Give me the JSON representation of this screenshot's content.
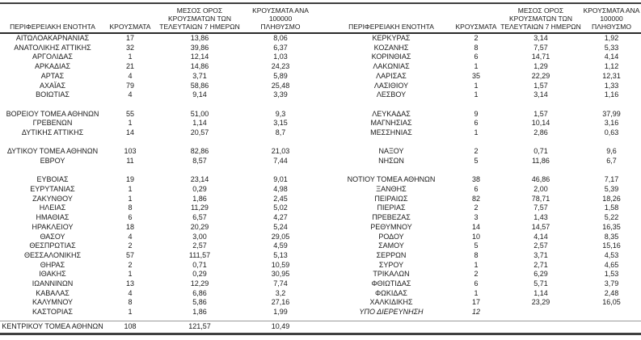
{
  "headers": {
    "region": "ΠΕΡΙΦΕΡΕΙΑΚΗ ΕΝΟΤΗΤΑ",
    "cases": "ΚΡΟΥΣΜΑΤΑ",
    "avg7": "ΜΕΣΟΣ ΟΡΟΣ\nΚΡΟΥΣΜΑΤΩΝ ΤΩΝ\nΤΕΛΕΥΤΑΙΩΝ 7 ΗΜΕΡΩΝ",
    "per100k": "ΚΡΟΥΣΜΑΤΑ ΑΝΑ 100000\nΠΛΗΘΥΣΜΟ"
  },
  "rows": [
    {
      "left": {
        "region": "ΑΙΤΩΛΟΑΚΑΡΝΑΝΙΑΣ",
        "cases": "17",
        "avg7": "13,86",
        "per100k": "8,06"
      },
      "right": {
        "region": "ΚΕΡΚΥΡΑΣ",
        "cases": "2",
        "avg7": "3,14",
        "per100k": "1,92"
      }
    },
    {
      "left": {
        "region": "ΑΝΑΤΟΛΙΚΗΣ ΑΤΤΙΚΗΣ",
        "cases": "32",
        "avg7": "39,86",
        "per100k": "6,37"
      },
      "right": {
        "region": "ΚΟΖΑΝΗΣ",
        "cases": "8",
        "avg7": "7,57",
        "per100k": "5,33"
      }
    },
    {
      "left": {
        "region": "ΑΡΓΟΛΙΔΑΣ",
        "cases": "1",
        "avg7": "12,14",
        "per100k": "1,03"
      },
      "right": {
        "region": "ΚΟΡΙΝΘΙΑΣ",
        "cases": "6",
        "avg7": "14,71",
        "per100k": "4,14"
      }
    },
    {
      "left": {
        "region": "ΑΡΚΑΔΙΑΣ",
        "cases": "21",
        "avg7": "14,86",
        "per100k": "24,23"
      },
      "right": {
        "region": "ΛΑΚΩΝΙΑΣ",
        "cases": "1",
        "avg7": "1,29",
        "per100k": "1,12"
      }
    },
    {
      "left": {
        "region": "ΑΡΤΑΣ",
        "cases": "4",
        "avg7": "3,71",
        "per100k": "5,89"
      },
      "right": {
        "region": "ΛΑΡΙΣΑΣ",
        "cases": "35",
        "avg7": "22,29",
        "per100k": "12,31"
      }
    },
    {
      "left": {
        "region": "ΑΧΑΪΑΣ",
        "cases": "79",
        "avg7": "58,86",
        "per100k": "25,48"
      },
      "right": {
        "region": "ΛΑΣΙΘΙΟΥ",
        "cases": "1",
        "avg7": "1,57",
        "per100k": "1,33"
      }
    },
    {
      "left": {
        "region": "ΒΟΙΩΤΙΑΣ",
        "cases": "4",
        "avg7": "9,14",
        "per100k": "3,39"
      },
      "right": {
        "region": "ΛΕΣΒΟΥ",
        "cases": "1",
        "avg7": "3,14",
        "per100k": "1,16"
      }
    },
    {
      "left": null,
      "right": null
    },
    {
      "left": {
        "region": "ΒΟΡΕΙΟΥ ΤΟΜΕΑ ΑΘΗΝΩΝ",
        "cases": "55",
        "avg7": "51,00",
        "per100k": "9,3"
      },
      "right": {
        "region": "ΛΕΥΚΑΔΑΣ",
        "cases": "9",
        "avg7": "1,57",
        "per100k": "37,99"
      }
    },
    {
      "left": {
        "region": "ΓΡΕΒΕΝΩΝ",
        "cases": "1",
        "avg7": "1,14",
        "per100k": "3,15"
      },
      "right": {
        "region": "ΜΑΓΝΗΣΙΑΣ",
        "cases": "6",
        "avg7": "10,14",
        "per100k": "3,16"
      }
    },
    {
      "left": {
        "region": "ΔΥΤΙΚΗΣ ΑΤΤΙΚΗΣ",
        "cases": "14",
        "avg7": "20,57",
        "per100k": "8,7"
      },
      "right": {
        "region": "ΜΕΣΣΗΝΙΑΣ",
        "cases": "1",
        "avg7": "2,86",
        "per100k": "0,63"
      }
    },
    {
      "left": null,
      "right": null
    },
    {
      "left": {
        "region": "ΔΥΤΙΚΟΥ ΤΟΜΕΑ ΑΘΗΝΩΝ",
        "cases": "103",
        "avg7": "82,86",
        "per100k": "21,03"
      },
      "right": {
        "region": "ΝΑΞΟΥ",
        "cases": "2",
        "avg7": "0,71",
        "per100k": "9,6"
      }
    },
    {
      "left": {
        "region": "ΕΒΡΟΥ",
        "cases": "11",
        "avg7": "8,57",
        "per100k": "7,44"
      },
      "right": {
        "region": "ΝΗΣΩΝ",
        "cases": "5",
        "avg7": "11,86",
        "per100k": "6,7"
      }
    },
    {
      "left": null,
      "right": null
    },
    {
      "left": {
        "region": "ΕΥΒΟΙΑΣ",
        "cases": "19",
        "avg7": "23,14",
        "per100k": "9,01"
      },
      "right": {
        "region": "ΝΟΤΙΟΥ ΤΟΜΕΑ ΑΘΗΝΩΝ",
        "cases": "38",
        "avg7": "46,86",
        "per100k": "7,17"
      }
    },
    {
      "left": {
        "region": "ΕΥΡΥΤΑΝΙΑΣ",
        "cases": "1",
        "avg7": "0,29",
        "per100k": "4,98"
      },
      "right": {
        "region": "ΞΑΝΘΗΣ",
        "cases": "6",
        "avg7": "2,00",
        "per100k": "5,39"
      }
    },
    {
      "left": {
        "region": "ΖΑΚΥΝΘΟΥ",
        "cases": "1",
        "avg7": "1,86",
        "per100k": "2,45"
      },
      "right": {
        "region": "ΠΕΙΡΑΙΩΣ",
        "cases": "82",
        "avg7": "78,71",
        "per100k": "18,26"
      }
    },
    {
      "left": {
        "region": "ΗΛΕΙΑΣ",
        "cases": "8",
        "avg7": "11,29",
        "per100k": "5,02"
      },
      "right": {
        "region": "ΠΙΕΡΙΑΣ",
        "cases": "2",
        "avg7": "7,57",
        "per100k": "1,58"
      }
    },
    {
      "left": {
        "region": "ΗΜΑΘΙΑΣ",
        "cases": "6",
        "avg7": "6,57",
        "per100k": "4,27"
      },
      "right": {
        "region": "ΠΡΕΒΕΖΑΣ",
        "cases": "3",
        "avg7": "1,43",
        "per100k": "5,22"
      }
    },
    {
      "left": {
        "region": "ΗΡΑΚΛΕΙΟΥ",
        "cases": "18",
        "avg7": "20,29",
        "per100k": "5,24"
      },
      "right": {
        "region": "ΡΕΘΥΜΝΟΥ",
        "cases": "14",
        "avg7": "14,57",
        "per100k": "16,35"
      }
    },
    {
      "left": {
        "region": "ΘΑΣΟΥ",
        "cases": "4",
        "avg7": "3,00",
        "per100k": "29,05"
      },
      "right": {
        "region": "ΡΟΔΟΥ",
        "cases": "10",
        "avg7": "4,14",
        "per100k": "8,35"
      }
    },
    {
      "left": {
        "region": "ΘΕΣΠΡΩΤΙΑΣ",
        "cases": "2",
        "avg7": "2,57",
        "per100k": "4,59"
      },
      "right": {
        "region": "ΣΑΜΟΥ",
        "cases": "5",
        "avg7": "2,57",
        "per100k": "15,16"
      }
    },
    {
      "left": {
        "region": "ΘΕΣΣΑΛΟΝΙΚΗΣ",
        "cases": "57",
        "avg7": "111,57",
        "per100k": "5,13"
      },
      "right": {
        "region": "ΣΕΡΡΩΝ",
        "cases": "8",
        "avg7": "3,71",
        "per100k": "4,53"
      }
    },
    {
      "left": {
        "region": "ΘΗΡΑΣ",
        "cases": "2",
        "avg7": "0,71",
        "per100k": "10,59"
      },
      "right": {
        "region": "ΣΥΡΟΥ",
        "cases": "1",
        "avg7": "2,71",
        "per100k": "4,65"
      }
    },
    {
      "left": {
        "region": "ΙΘΑΚΗΣ",
        "cases": "1",
        "avg7": "0,29",
        "per100k": "30,95"
      },
      "right": {
        "region": "ΤΡΙΚΑΛΩΝ",
        "cases": "2",
        "avg7": "6,29",
        "per100k": "1,53"
      }
    },
    {
      "left": {
        "region": "ΙΩΑΝΝΙΝΩΝ",
        "cases": "13",
        "avg7": "12,29",
        "per100k": "7,74"
      },
      "right": {
        "region": "ΦΘΙΩΤΙΔΑΣ",
        "cases": "6",
        "avg7": "5,71",
        "per100k": "3,79"
      }
    },
    {
      "left": {
        "region": "ΚΑΒΑΛΑΣ",
        "cases": "4",
        "avg7": "6,86",
        "per100k": "3,2"
      },
      "right": {
        "region": "ΦΩΚΙΔΑΣ",
        "cases": "1",
        "avg7": "1,14",
        "per100k": "2,48"
      }
    },
    {
      "left": {
        "region": "ΚΑΛΥΜΝΟΥ",
        "cases": "8",
        "avg7": "5,86",
        "per100k": "27,16"
      },
      "right": {
        "region": "ΧΑΛΚΙΔΙΚΗΣ",
        "cases": "17",
        "avg7": "23,29",
        "per100k": "16,05"
      }
    },
    {
      "left": {
        "region": "ΚΑΣΤΟΡΙΑΣ",
        "cases": "1",
        "avg7": "1,86",
        "per100k": "1,99"
      },
      "right": {
        "region": "ΥΠΟ ΔΙΕΡΕΥΝΗΣΗ",
        "cases": "12",
        "avg7": "",
        "per100k": "",
        "style": "italic"
      }
    }
  ],
  "footer": {
    "region": "ΚΕΝΤΡΙΚΟΥ ΤΟΜΕΑ ΑΘΗΝΩΝ",
    "cases": "108",
    "avg7": "121,57",
    "per100k": "10,49"
  },
  "colors": {
    "text": "#1a1a1a",
    "rule_dark": "#3f3f3f",
    "rule_thin": "#9a9a9a",
    "background": "#ffffff"
  }
}
